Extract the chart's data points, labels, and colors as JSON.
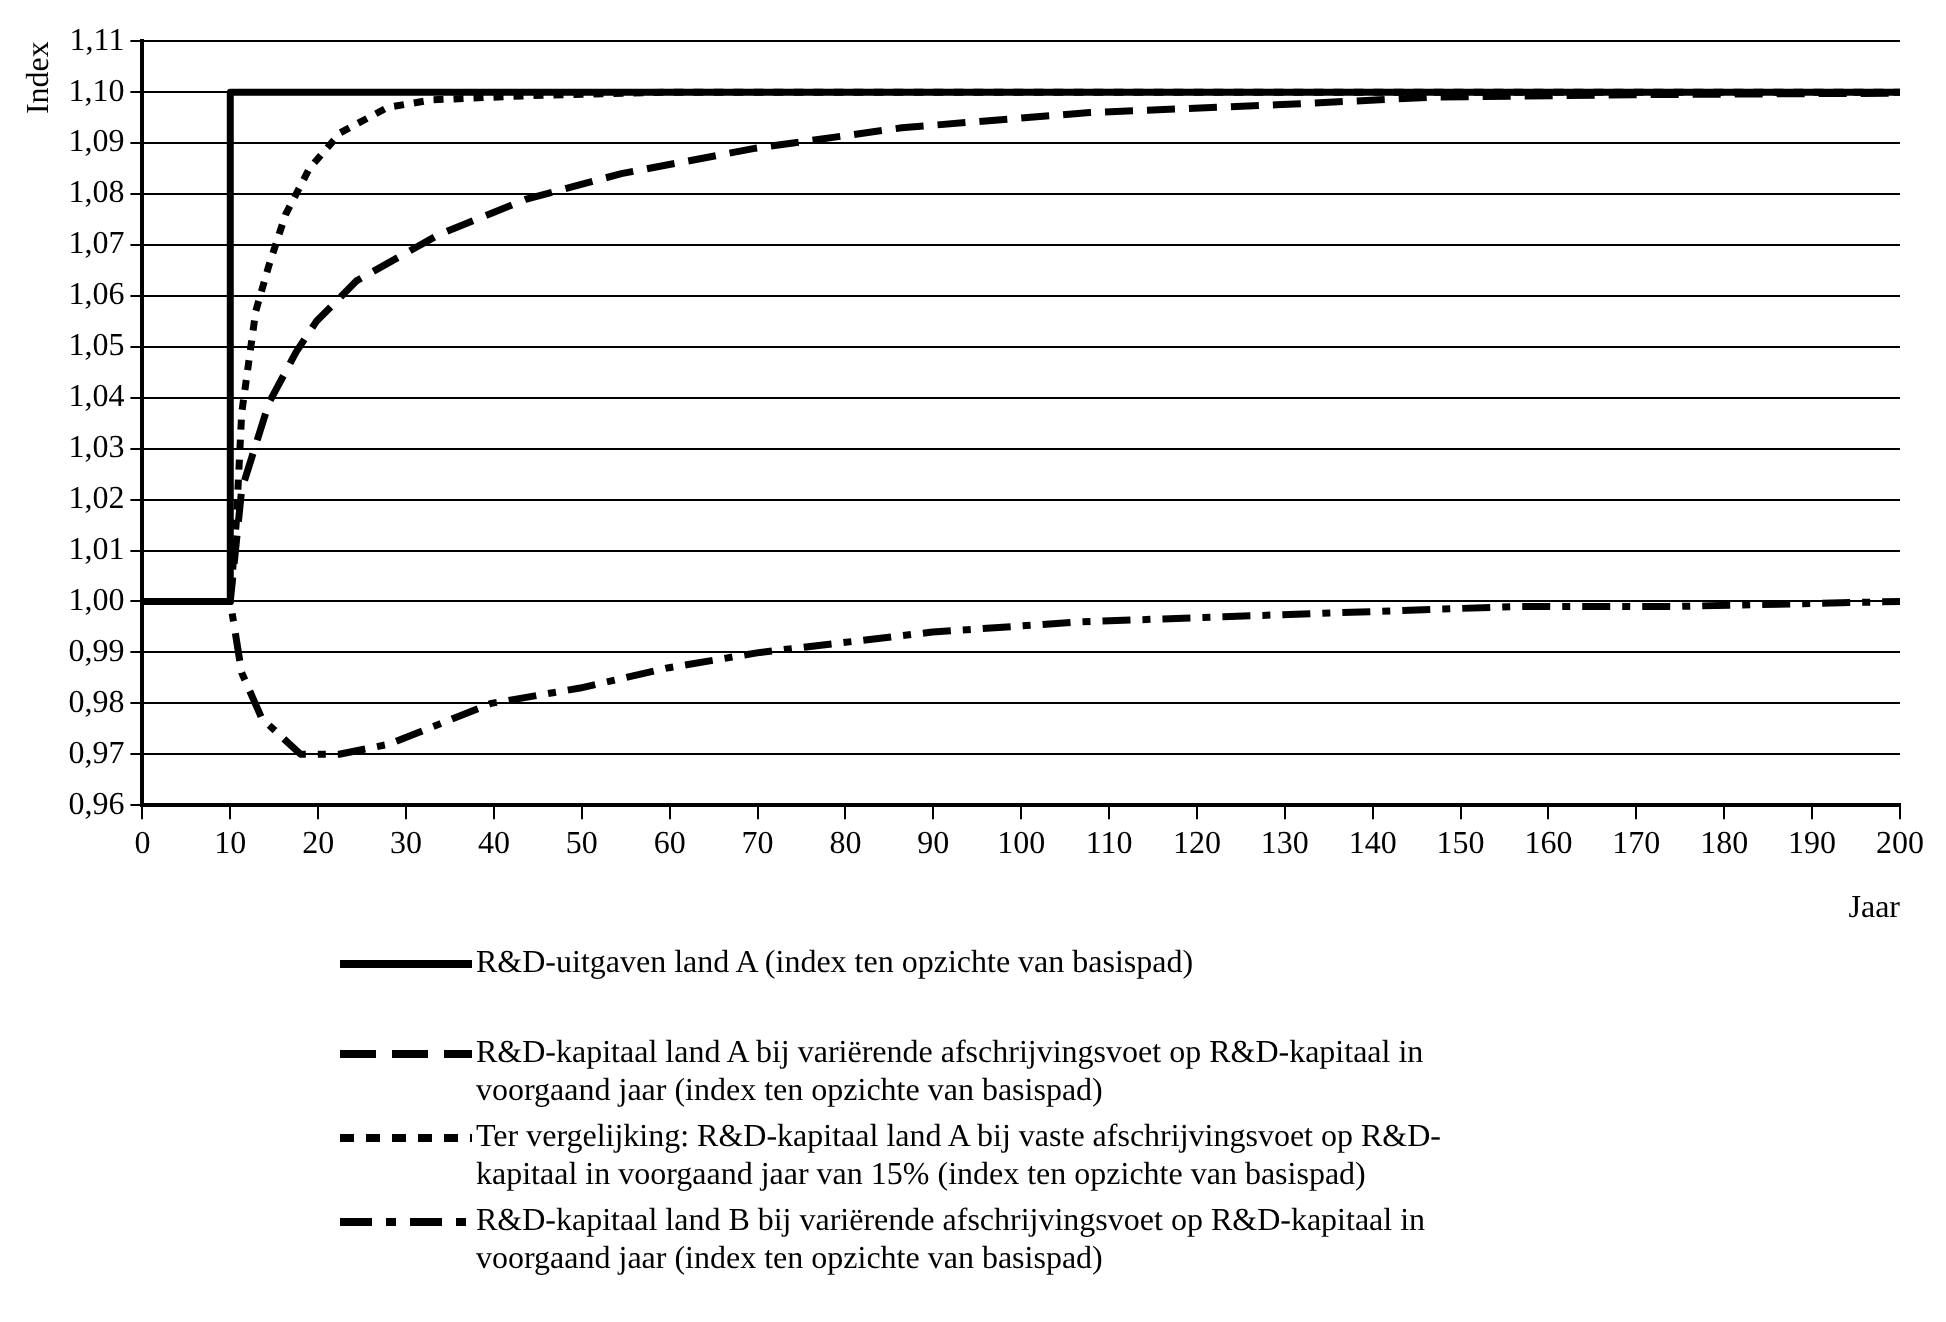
{
  "chart_data": {
    "type": "line",
    "xlabel": "Jaar",
    "ylabel": "Index",
    "xlim": [
      0,
      200
    ],
    "xticks": [
      0,
      10,
      20,
      30,
      40,
      50,
      60,
      70,
      80,
      90,
      100,
      110,
      120,
      130,
      140,
      150,
      160,
      170,
      180,
      190,
      200
    ],
    "ylim": [
      0.96,
      1.11
    ],
    "yticks": [
      {
        "value": 0.96,
        "label": "0,96"
      },
      {
        "value": 0.97,
        "label": "0,97"
      },
      {
        "value": 0.98,
        "label": "0,98"
      },
      {
        "value": 0.99,
        "label": "0,99"
      },
      {
        "value": 1.0,
        "label": "1,00"
      },
      {
        "value": 1.01,
        "label": "1,01"
      },
      {
        "value": 1.02,
        "label": "1,02"
      },
      {
        "value": 1.03,
        "label": "1,03"
      },
      {
        "value": 1.04,
        "label": "1,04"
      },
      {
        "value": 1.05,
        "label": "1,05"
      },
      {
        "value": 1.06,
        "label": "1,06"
      },
      {
        "value": 1.07,
        "label": "1,07"
      },
      {
        "value": 1.08,
        "label": "1,08"
      },
      {
        "value": 1.09,
        "label": "1,09"
      },
      {
        "value": 1.1,
        "label": "1,10"
      },
      {
        "value": 1.11,
        "label": "1,11"
      }
    ],
    "grid": "y",
    "legend": "bottom",
    "marker": "none",
    "series": [
      {
        "name": "R&D-uitgaven land A (index ten opzichte van basispad)",
        "color": "#000000",
        "line_style": "solid",
        "x": [
          0,
          10,
          10,
          200
        ],
        "values": [
          1,
          1,
          1.1,
          1.1
        ]
      },
      {
        "name": "R&D-kapitaal land A bij variërende afschrijvingsvoet op R&D-kapitaal in voorgaand jaar (index ten opzichte van basispad)",
        "color": "#000000",
        "line_style": "dashed",
        "x": [
          0,
          10,
          11.3,
          14.4,
          17.5,
          19.8,
          24.4,
          33.7,
          43.7,
          54.5,
          69.8,
          86.4,
          107.8,
          129,
          146.8,
          170,
          200
        ],
        "values": [
          1,
          1,
          1.022,
          1.039,
          1.049,
          1.055,
          1.063,
          1.072,
          1.079,
          1.084,
          1.089,
          1.093,
          1.096,
          1.0975,
          1.099,
          1.0995,
          1.0998
        ]
      },
      {
        "name": "Ter vergelijking: R&D-kapitaal land A bij vaste afschrijvingsvoet op R&D-kapitaal in voorgaand jaar van 15% (index ten opzichte van basispad)",
        "color": "#000000",
        "line_style": "dotted",
        "x": [
          0,
          10,
          10.7,
          11.3,
          12.1,
          12.9,
          14.4,
          16.3,
          19,
          22.5,
          27.9,
          33,
          44,
          60,
          200
        ],
        "values": [
          1,
          1,
          1.016,
          1.037,
          1.047,
          1.057,
          1.066,
          1.076,
          1.085,
          1.092,
          1.097,
          1.0985,
          1.0993,
          1.1,
          1.1
        ]
      },
      {
        "name": "R&D-kapitaal land B bij variërende afschrijvingsvoet op R&D-kapitaal in voorgaand jaar (index ten opzichte van basispad)",
        "color": "#000000",
        "line_style": "dashdot",
        "x": [
          0,
          10,
          11.3,
          13.6,
          18,
          22.4,
          28.1,
          39.7,
          49.8,
          59.9,
          70.3,
          89.9,
          106.8,
          123,
          139.7,
          156,
          174,
          200
        ],
        "values": [
          1,
          1,
          0.986,
          0.977,
          0.97,
          0.97,
          0.972,
          0.98,
          0.983,
          0.987,
          0.99,
          0.994,
          0.996,
          0.997,
          0.998,
          0.999,
          0.999,
          1.0
        ]
      }
    ]
  }
}
